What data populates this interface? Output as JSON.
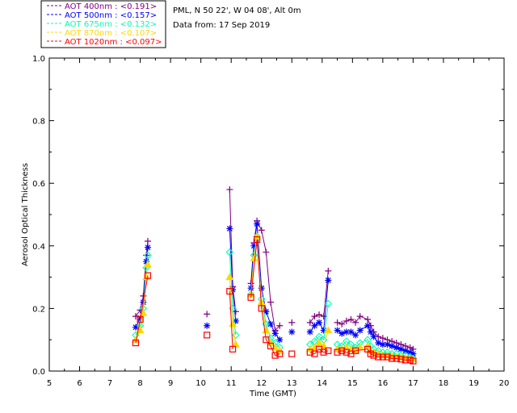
{
  "chart_data": {
    "type": "scatter",
    "title": "",
    "xlabel": "Time (GMT)",
    "ylabel": "Aerosol Optical Thickness",
    "xlim": [
      5,
      20
    ],
    "ylim": [
      0.0,
      1.0
    ],
    "xticks": [
      "5",
      "6",
      "7",
      "8",
      "9",
      "10",
      "11",
      "12",
      "13",
      "14",
      "15",
      "16",
      "17",
      "18",
      "19",
      "20"
    ],
    "yticks": [
      "0.0",
      "0.2",
      "0.4",
      "0.6",
      "0.8",
      "1.0"
    ],
    "info": {
      "location": "PML, N 50 22', W 04 08', Alt 0m",
      "date": "Data from: 17 Sep 2019"
    },
    "legend": [
      {
        "label": "AOT  400nm : <0.191>",
        "color": "#800080"
      },
      {
        "label": "AOT  500nm : <0.157>",
        "color": "#0000ff"
      },
      {
        "label": "AOT  675nm : <0.132>",
        "color": "#00ffb0"
      },
      {
        "label": "AOT  870nm : <0.107>",
        "color": "#ffd700"
      },
      {
        "label": "AOT 1020nm : <0.097>",
        "color": "#ff0000"
      }
    ],
    "series": [
      {
        "name": "AOT 400nm",
        "color": "#800080",
        "marker": "plus",
        "segments": [
          [
            [
              7.85,
              0.175
            ],
            [
              8.0,
              0.195
            ],
            [
              8.1,
              0.24
            ],
            [
              8.2,
              0.37
            ],
            [
              8.25,
              0.415
            ]
          ],
          [
            [
              10.2,
              0.182
            ]
          ],
          [
            [
              10.95,
              0.58
            ],
            [
              11.05,
              0.27
            ],
            [
              11.15,
              0.19
            ]
          ],
          [
            [
              11.65,
              0.28
            ],
            [
              11.75,
              0.41
            ],
            [
              11.85,
              0.48
            ],
            [
              12.0,
              0.45
            ],
            [
              12.15,
              0.38
            ],
            [
              12.3,
              0.22
            ],
            [
              12.45,
              0.13
            ],
            [
              12.6,
              0.145
            ]
          ],
          [
            [
              13.0,
              0.155
            ]
          ],
          [
            [
              13.6,
              0.155
            ],
            [
              13.75,
              0.175
            ],
            [
              13.9,
              0.18
            ],
            [
              14.05,
              0.175
            ],
            [
              14.2,
              0.32
            ]
          ],
          [
            [
              14.5,
              0.155
            ],
            [
              14.65,
              0.15
            ],
            [
              14.8,
              0.16
            ],
            [
              14.95,
              0.165
            ],
            [
              15.1,
              0.155
            ],
            [
              15.25,
              0.175
            ],
            [
              15.5,
              0.165
            ],
            [
              15.6,
              0.145
            ],
            [
              15.7,
              0.125
            ],
            [
              15.85,
              0.11
            ],
            [
              16.0,
              0.105
            ],
            [
              16.15,
              0.1
            ],
            [
              16.3,
              0.095
            ],
            [
              16.45,
              0.09
            ],
            [
              16.6,
              0.085
            ],
            [
              16.75,
              0.08
            ],
            [
              16.9,
              0.075
            ],
            [
              17.0,
              0.07
            ]
          ]
        ]
      },
      {
        "name": "AOT 500nm",
        "color": "#0000ff",
        "marker": "star",
        "segments": [
          [
            [
              7.85,
              0.14
            ],
            [
              8.0,
              0.17
            ],
            [
              8.1,
              0.22
            ],
            [
              8.2,
              0.35
            ],
            [
              8.25,
              0.395
            ]
          ],
          [
            [
              10.2,
              0.145
            ]
          ],
          [
            [
              10.95,
              0.455
            ],
            [
              11.05,
              0.26
            ],
            [
              11.15,
              0.16
            ]
          ],
          [
            [
              11.65,
              0.265
            ],
            [
              11.75,
              0.4
            ],
            [
              11.85,
              0.47
            ],
            [
              12.0,
              0.265
            ],
            [
              12.15,
              0.19
            ],
            [
              12.3,
              0.15
            ],
            [
              12.45,
              0.12
            ],
            [
              12.6,
              0.1
            ]
          ],
          [
            [
              13.0,
              0.125
            ]
          ],
          [
            [
              13.6,
              0.125
            ],
            [
              13.75,
              0.145
            ],
            [
              13.9,
              0.155
            ],
            [
              14.05,
              0.13
            ],
            [
              14.2,
              0.29
            ]
          ],
          [
            [
              14.5,
              0.13
            ],
            [
              14.65,
              0.12
            ],
            [
              14.8,
              0.125
            ],
            [
              14.95,
              0.125
            ],
            [
              15.1,
              0.115
            ],
            [
              15.25,
              0.13
            ],
            [
              15.5,
              0.145
            ],
            [
              15.6,
              0.125
            ],
            [
              15.7,
              0.11
            ],
            [
              15.85,
              0.09
            ],
            [
              16.0,
              0.085
            ],
            [
              16.15,
              0.085
            ],
            [
              16.3,
              0.08
            ],
            [
              16.45,
              0.075
            ],
            [
              16.6,
              0.07
            ],
            [
              16.75,
              0.065
            ],
            [
              16.9,
              0.06
            ],
            [
              17.0,
              0.055
            ]
          ]
        ]
      },
      {
        "name": "AOT 675nm",
        "color": "#00ffb0",
        "marker": "diamond",
        "segments": [
          [
            [
              7.85,
              0.115
            ],
            [
              8.0,
              0.145
            ],
            [
              8.1,
              0.2
            ],
            [
              8.2,
              0.33
            ],
            [
              8.25,
              0.37
            ]
          ],
          [
            [
              10.95,
              0.38
            ],
            [
              11.05,
              0.2
            ],
            [
              11.15,
              0.115
            ]
          ],
          [
            [
              11.65,
              0.245
            ],
            [
              11.75,
              0.37
            ],
            [
              11.85,
              0.43
            ],
            [
              12.0,
              0.23
            ],
            [
              12.15,
              0.15
            ],
            [
              12.3,
              0.105
            ],
            [
              12.45,
              0.09
            ],
            [
              12.6,
              0.075
            ]
          ],
          [
            [
              13.6,
              0.085
            ],
            [
              13.75,
              0.095
            ],
            [
              13.9,
              0.11
            ],
            [
              14.05,
              0.1
            ],
            [
              14.2,
              0.215
            ]
          ],
          [
            [
              14.5,
              0.085
            ],
            [
              14.65,
              0.08
            ],
            [
              14.8,
              0.095
            ],
            [
              14.95,
              0.085
            ],
            [
              15.1,
              0.075
            ],
            [
              15.25,
              0.09
            ],
            [
              15.5,
              0.1
            ],
            [
              15.6,
              0.08
            ],
            [
              15.7,
              0.07
            ],
            [
              15.85,
              0.065
            ],
            [
              16.0,
              0.06
            ],
            [
              16.15,
              0.06
            ],
            [
              16.3,
              0.055
            ],
            [
              16.45,
              0.055
            ],
            [
              16.6,
              0.05
            ],
            [
              16.75,
              0.05
            ],
            [
              16.9,
              0.045
            ],
            [
              17.0,
              0.04
            ]
          ]
        ]
      },
      {
        "name": "AOT 870nm",
        "color": "#ffd700",
        "marker": "triangle",
        "segments": [
          [
            [
              7.85,
              0.1
            ],
            [
              8.0,
              0.13
            ],
            [
              8.1,
              0.185
            ],
            [
              8.2,
              0.3
            ],
            [
              8.25,
              0.34
            ]
          ],
          [
            [
              10.95,
              0.3
            ],
            [
              11.05,
              0.15
            ],
            [
              11.15,
              0.085
            ]
          ],
          [
            [
              11.65,
              0.245
            ],
            [
              11.75,
              0.36
            ],
            [
              11.85,
              0.43
            ],
            [
              12.0,
              0.22
            ],
            [
              12.15,
              0.13
            ],
            [
              12.3,
              0.09
            ],
            [
              12.45,
              0.075
            ],
            [
              12.6,
              0.065
            ]
          ],
          [
            [
              13.6,
              0.07
            ],
            [
              13.75,
              0.075
            ],
            [
              13.9,
              0.09
            ],
            [
              14.05,
              0.08
            ],
            [
              14.2,
              0.13
            ]
          ],
          [
            [
              14.5,
              0.07
            ],
            [
              14.65,
              0.07
            ],
            [
              14.8,
              0.075
            ],
            [
              14.95,
              0.07
            ],
            [
              15.1,
              0.065
            ],
            [
              15.25,
              0.075
            ],
            [
              15.5,
              0.08
            ],
            [
              15.6,
              0.065
            ],
            [
              15.7,
              0.06
            ],
            [
              15.85,
              0.055
            ],
            [
              16.0,
              0.05
            ],
            [
              16.15,
              0.05
            ],
            [
              16.3,
              0.048
            ],
            [
              16.45,
              0.046
            ],
            [
              16.6,
              0.044
            ],
            [
              16.75,
              0.042
            ],
            [
              16.9,
              0.04
            ],
            [
              17.0,
              0.038
            ]
          ]
        ]
      },
      {
        "name": "AOT 1020nm",
        "color": "#ff0000",
        "marker": "square",
        "segments": [
          [
            [
              7.85,
              0.09
            ],
            [
              8.0,
              0.165
            ],
            [
              8.25,
              0.305
            ]
          ],
          [
            [
              10.2,
              0.115
            ]
          ],
          [
            [
              10.95,
              0.255
            ],
            [
              11.05,
              0.07
            ]
          ],
          [
            [
              11.65,
              0.235
            ],
            [
              11.85,
              0.42
            ],
            [
              12.0,
              0.2
            ],
            [
              12.15,
              0.1
            ],
            [
              12.3,
              0.08
            ],
            [
              12.45,
              0.05
            ],
            [
              12.6,
              0.055
            ]
          ],
          [
            [
              13.0,
              0.055
            ]
          ],
          [
            [
              13.6,
              0.06
            ],
            [
              13.75,
              0.055
            ],
            [
              13.9,
              0.07
            ],
            [
              14.05,
              0.06
            ],
            [
              14.2,
              0.065
            ]
          ],
          [
            [
              14.5,
              0.06
            ],
            [
              14.65,
              0.065
            ],
            [
              14.8,
              0.06
            ],
            [
              14.95,
              0.055
            ],
            [
              15.1,
              0.065
            ],
            [
              15.5,
              0.07
            ],
            [
              15.6,
              0.055
            ],
            [
              15.7,
              0.05
            ],
            [
              15.85,
              0.045
            ],
            [
              16.0,
              0.045
            ],
            [
              16.15,
              0.045
            ],
            [
              16.3,
              0.04
            ],
            [
              16.45,
              0.04
            ],
            [
              16.6,
              0.038
            ],
            [
              16.75,
              0.035
            ],
            [
              16.9,
              0.035
            ],
            [
              17.0,
              0.032
            ]
          ]
        ]
      }
    ]
  }
}
